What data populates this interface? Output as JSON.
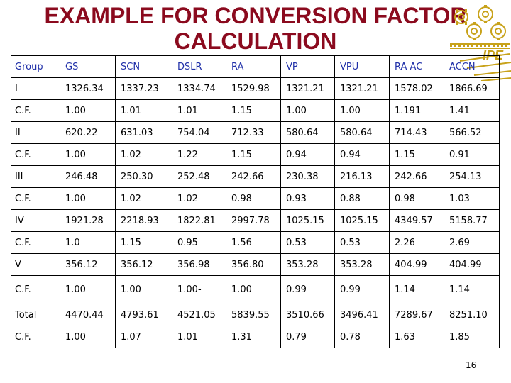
{
  "title": {
    "line1": "EXAMPLE FOR CONVERSION FACTOR",
    "line2": "CALCULATION"
  },
  "logo": {
    "text": "IPE",
    "icon": "gear-logo-icon",
    "color": "#c8a21a"
  },
  "accent_color": "#8b0a1e",
  "header_color": "#1f2fa8",
  "table": {
    "headers": [
      "Group",
      "GS",
      "SCN",
      "DSLR",
      "RA",
      "VP",
      "VPU",
      "RA AC",
      "ACCN"
    ],
    "rows": [
      [
        "I",
        "1326.34",
        "1337.23",
        "1334.74",
        "1529.98",
        "1321.21",
        "1321.21",
        "1578.02",
        "1866.69"
      ],
      [
        "C.F.",
        "1.00",
        "1.01",
        "1.01",
        "1.15",
        "1.00",
        "1.00",
        "1.191",
        "1.41"
      ],
      [
        "II",
        "620.22",
        "631.03",
        "754.04",
        "712.33",
        "580.64",
        "580.64",
        "714.43",
        "566.52"
      ],
      [
        "C.F.",
        "1.00",
        "1.02",
        "1.22",
        "1.15",
        "0.94",
        "0.94",
        "1.15",
        "0.91"
      ],
      [
        "III",
        "246.48",
        "250.30",
        "252.48",
        "242.66",
        "230.38",
        "216.13",
        "242.66",
        "254.13"
      ],
      [
        "C.F.",
        "1.00",
        "1.02",
        "1.02",
        "0.98",
        "0.93",
        "0.88",
        "0.98",
        "1.03"
      ],
      [
        "IV",
        "1921.28",
        "2218.93",
        "1822.81",
        "2997.78",
        "1025.15",
        "1025.15",
        "4349.57",
        "5158.77"
      ],
      [
        "C.F.",
        "1.0",
        "1.15",
        "0.95",
        "1.56",
        "0.53",
        "0.53",
        "2.26",
        "2.69"
      ],
      [
        "V",
        "356.12",
        "356.12",
        "356.98",
        "356.80",
        "353.28",
        "353.28",
        "404.99",
        "404.99"
      ],
      [
        "C.F.",
        "1.00",
        "1.00",
        "1.00-",
        "1.00",
        "0.99",
        "0.99",
        "1.14",
        "1.14"
      ],
      [
        "Total",
        "4470.44",
        "4793.61",
        "4521.05",
        "5839.55",
        "3510.66",
        "3496.41",
        "7289.67",
        "8251.10"
      ],
      [
        "C.F.",
        "1.00",
        "1.07",
        "1.01",
        "1.31",
        "0.79",
        "0.78",
        "1.63",
        "1.85"
      ]
    ]
  },
  "page_number": "16"
}
